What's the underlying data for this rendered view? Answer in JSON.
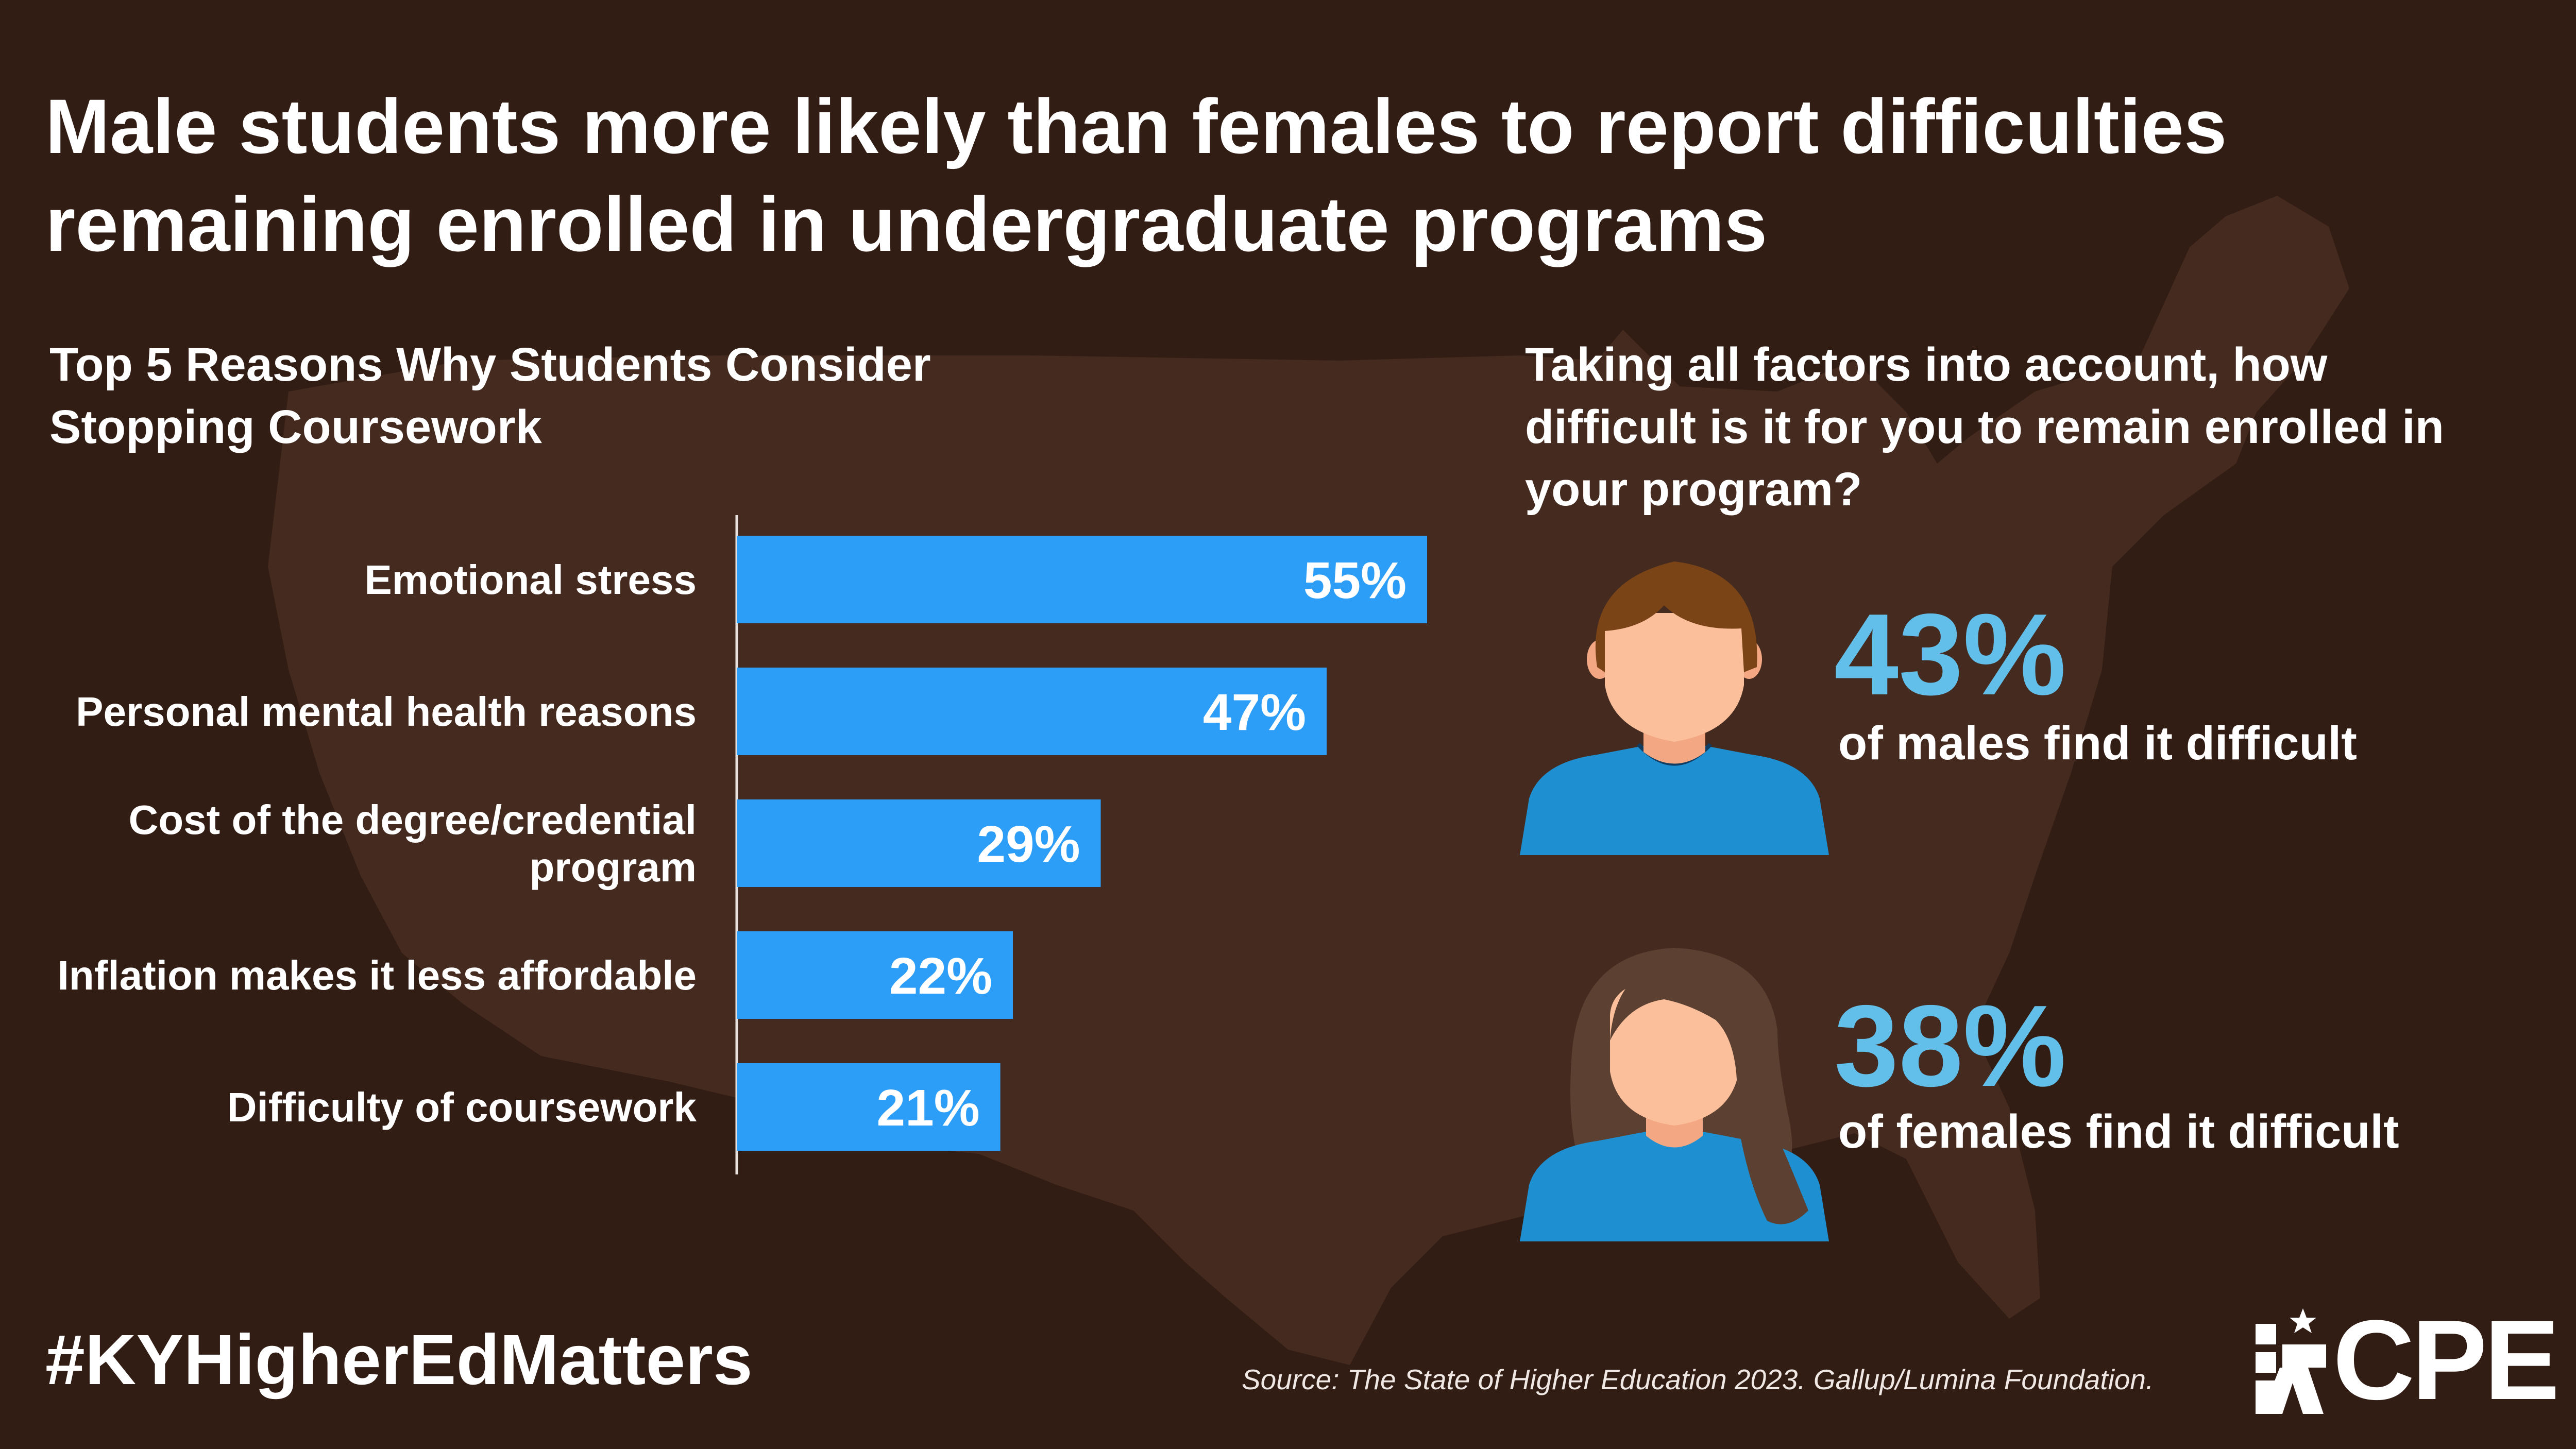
{
  "title": "Male students more likely than females to report difficulties remaining enrolled in undergraduate programs",
  "colors": {
    "background": "#321d14",
    "map": "#452a1f",
    "bar": "#2d9ef8",
    "stat": "#62bfe9",
    "shirt": "#1e8fd0",
    "skin": "#fbc09b",
    "male_hair": "#7a4416",
    "female_hair": "#5c4031"
  },
  "chart_data": {
    "type": "bar",
    "orientation": "horizontal",
    "title": "Top 5 Reasons Why Students Consider Stopping Coursework",
    "categories": [
      "Emotional stress",
      "Personal mental health reasons",
      "Cost of the degree/credential program",
      "Inflation makes it less affordable",
      "Difficulty of coursework"
    ],
    "category_lines": [
      [
        "Emotional stress"
      ],
      [
        "Personal mental health reasons"
      ],
      [
        "Cost of the degree/credential",
        "program"
      ],
      [
        "Inflation makes it less affordable"
      ],
      [
        "Difficulty of coursework"
      ]
    ],
    "values": [
      55,
      47,
      29,
      22,
      21
    ],
    "value_labels": [
      "55%",
      "47%",
      "29%",
      "22%",
      "21%"
    ],
    "unit": "%",
    "xlim": [
      0,
      100
    ],
    "grid": false,
    "legend": "none"
  },
  "question": "Taking all factors into account, how difficult is it for you to remain enrolled in your program?",
  "stats": {
    "male": {
      "value": 43,
      "value_label": "43%",
      "caption": "of males find it difficult",
      "icon": "male-avatar-icon"
    },
    "female": {
      "value": 38,
      "value_label": "38%",
      "caption": "of females find it difficult",
      "icon": "female-avatar-icon"
    }
  },
  "footer": {
    "hashtag": "#KYHigherEdMatters",
    "source": "Source: The State of Higher Education 2023. Gallup/Lumina Foundation.",
    "logo_text": "CPE",
    "logo_icon": "cpe-logo-icon"
  }
}
